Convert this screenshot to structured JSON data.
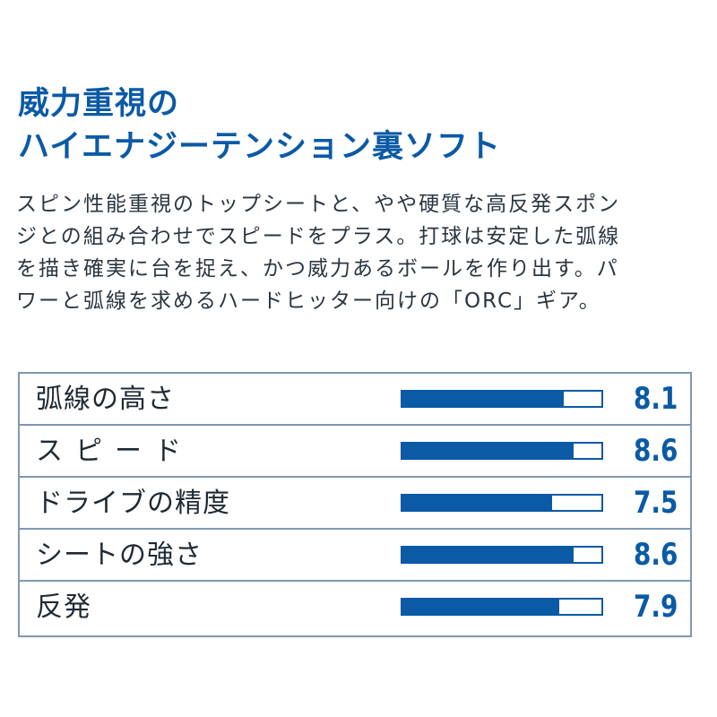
{
  "title": {
    "line1": "威力重視の",
    "line2": "ハイエナジーテンション裏ソフト"
  },
  "description": [
    "スピン性能重視のトップシートと、やや硬質な高反発スポン",
    "ジとの組み合わせでスピードをプラス。打球は安定した弧線",
    "を描き確実に台を捉え、かつ威力あるボールを作り出す。パ",
    "ワーと弧線を求めるハードヒッター向けの「ORC」ギア。"
  ],
  "ratings": {
    "scale_max": 10,
    "accent_color": "#0a5aa6",
    "items": [
      {
        "label": "弧線の高さ",
        "value": 8.1,
        "value_text": "8.1"
      },
      {
        "label": "スピード",
        "value": 8.6,
        "value_text": "8.6"
      },
      {
        "label": "ドライブの精度",
        "value": 7.5,
        "value_text": "7.5"
      },
      {
        "label": "シートの強さ",
        "value": 8.6,
        "value_text": "8.6"
      },
      {
        "label": "反発",
        "value": 7.9,
        "value_text": "7.9"
      }
    ]
  }
}
